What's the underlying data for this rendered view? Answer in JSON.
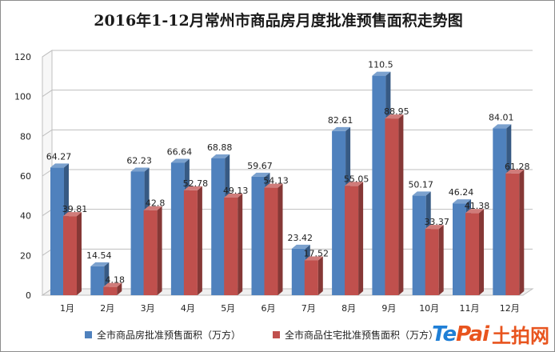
{
  "chart_data": {
    "type": "bar",
    "title": "2016年1-12月常州市商品房月度批准预售面积走势图",
    "categories": [
      "1月",
      "2月",
      "3月",
      "4月",
      "5月",
      "6月",
      "7月",
      "8月",
      "9月",
      "10月",
      "11月",
      "12月"
    ],
    "series": [
      {
        "name": "全市商品房批准预售面积（万方）",
        "color": "#4f81bd",
        "values": [
          64.27,
          14.54,
          62.23,
          66.64,
          68.88,
          59.67,
          23.42,
          82.61,
          110.5,
          50.17,
          46.24,
          84.01
        ],
        "labels": [
          "64.27",
          "14.54",
          "62.23",
          "66.64",
          "68.88",
          "59.67",
          "23.42",
          "82.61",
          "110.5",
          "50.17",
          "46.24",
          "84.01"
        ]
      },
      {
        "name": "全市商品住宅批准预售面积（万方）",
        "color": "#c0504d",
        "values": [
          39.81,
          4.18,
          42.8,
          52.78,
          49.13,
          54.13,
          17.52,
          55.05,
          88.95,
          33.37,
          41.38,
          61.28
        ],
        "labels": [
          "39.81",
          "4.18",
          "42.8",
          "52.78",
          "49.13",
          "54.13",
          "17.52",
          "55.05",
          "88.95",
          "33.37",
          "41.38",
          "61.28"
        ]
      }
    ],
    "yticks": [
      "0",
      "20",
      "40",
      "60",
      "80",
      "100",
      "120"
    ],
    "ylim": [
      0,
      120
    ],
    "grid": true,
    "legend": "bottom",
    "three_d": true
  },
  "logo": {
    "mark_prefix": "Te",
    "mark_suffix": "Pai",
    "cn": "土拍网"
  }
}
